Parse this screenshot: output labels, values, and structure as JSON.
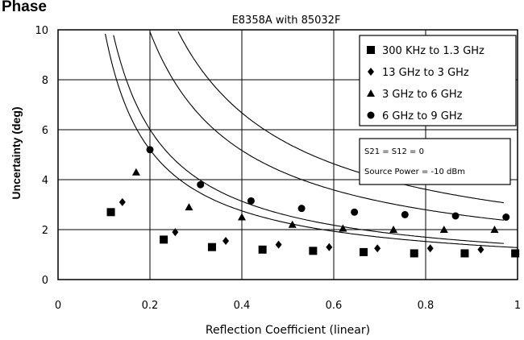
{
  "heading": "Phase",
  "chart_data": {
    "type": "scatter",
    "title": "E8358A with 85032F",
    "xlabel": "Reflection Coefficient (linear)",
    "ylabel": "Uncertainty (deg)",
    "xlim": [
      0,
      1
    ],
    "ylim": [
      0,
      10
    ],
    "xticks": [
      0,
      0.2,
      0.4,
      0.6,
      0.8,
      1
    ],
    "xtick_labels": [
      "0",
      "0.2",
      "0.4",
      "0.6",
      "0.8",
      "1"
    ],
    "yticks": [
      0,
      2,
      4,
      6,
      8,
      10
    ],
    "ytick_labels": [
      "0",
      "2",
      "4",
      "6",
      "8",
      "10"
    ],
    "grid": true,
    "legend_position": "top-right",
    "series": [
      {
        "name": "300 KHz to 1.3 GHz",
        "marker": "square",
        "x": [
          0.115,
          0.23,
          0.335,
          0.445,
          0.555,
          0.665,
          0.775,
          0.885,
          0.995
        ],
        "y": [
          2.7,
          1.6,
          1.3,
          1.2,
          1.15,
          1.1,
          1.05,
          1.05,
          1.05
        ]
      },
      {
        "name": "13 GHz to 3 GHz",
        "marker": "diamond",
        "x": [
          0.14,
          0.255,
          0.365,
          0.48,
          0.59,
          0.695,
          0.81,
          0.92
        ],
        "y": [
          3.1,
          1.9,
          1.55,
          1.4,
          1.3,
          1.25,
          1.25,
          1.2
        ]
      },
      {
        "name": "3 GHz to 6 GHz",
        "marker": "triangle",
        "x": [
          0.17,
          0.285,
          0.4,
          0.51,
          0.62,
          0.73,
          0.84,
          0.95
        ],
        "y": [
          4.3,
          2.9,
          2.5,
          2.2,
          2.05,
          2.0,
          2.0,
          2.0
        ]
      },
      {
        "name": "6 GHz to 9 GHz",
        "marker": "circle",
        "x": [
          0.2,
          0.31,
          0.42,
          0.53,
          0.645,
          0.755,
          0.865,
          0.975
        ],
        "y": [
          5.2,
          3.8,
          3.15,
          2.85,
          2.7,
          2.6,
          2.55,
          2.5
        ]
      }
    ],
    "curves": [
      {
        "a": 0.98,
        "b": 0.3,
        "x_range": [
          0.03,
          1.0
        ]
      },
      {
        "a": 1.15,
        "b": 0.26,
        "x_range": [
          0.035,
          0.97
        ]
      },
      {
        "a": 1.9,
        "b": 0.42,
        "x_range": [
          0.05,
          0.97
        ]
      },
      {
        "a": 2.45,
        "b": 0.55,
        "x_range": [
          0.07,
          0.97
        ]
      }
    ],
    "annotations": [
      "S21 = S12 = 0",
      "Source Power = -10 dBm"
    ]
  }
}
